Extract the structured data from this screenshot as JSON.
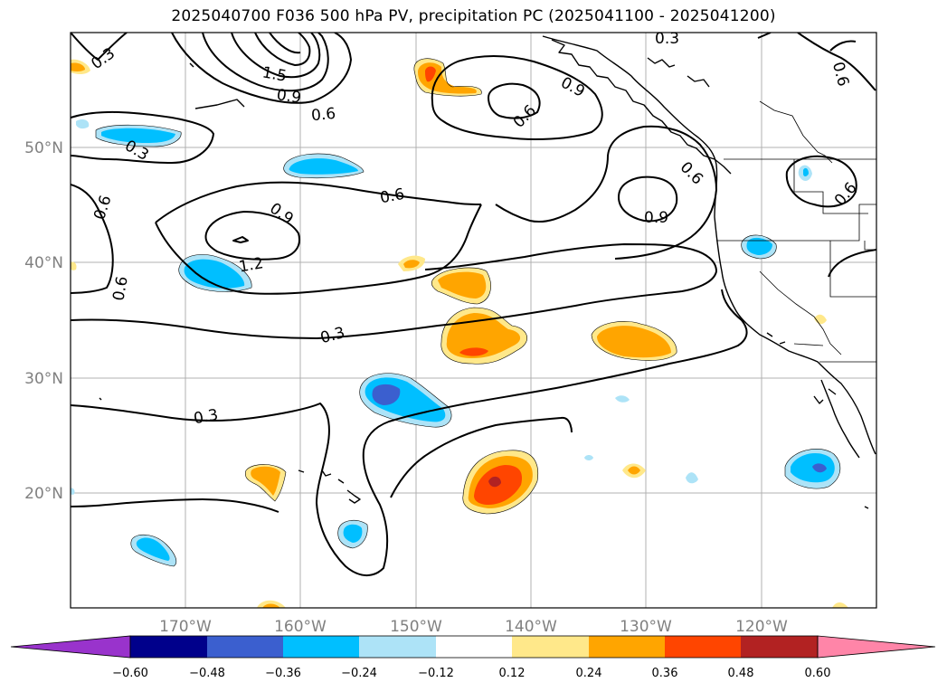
{
  "title": "2025040700 F036 500 hPa PV, precipitation PC (2025041100 - 2025041200)",
  "latitude_labels": [
    "50°N",
    "40°N",
    "30°N",
    "20°N"
  ],
  "longitude_labels": [
    "170°W",
    "160°W",
    "150°W",
    "140°W",
    "130°W",
    "120°W"
  ],
  "contour_labels": [
    "0.3",
    "1.5",
    "0.9",
    "0.6",
    "0.3",
    "0.6",
    "0.9",
    "0.6",
    "0.3",
    "0.6",
    "0.6",
    "0.9",
    "0.9",
    "0.6",
    "0.6",
    "1.2",
    "0.6",
    "0.3",
    "0.3"
  ],
  "colorbar": {
    "colors": [
      "#9933cc",
      "#00008b",
      "#3b5fcf",
      "#00bfff",
      "#ade3f7",
      "#ffffff",
      "#ffe88a",
      "#ffa500",
      "#ff4500",
      "#b22222",
      "#ff85a8"
    ],
    "tick_labels": [
      "−0.60",
      "−0.48",
      "−0.36",
      "−0.24",
      "−0.12",
      "0.12",
      "0.24",
      "0.36",
      "0.48",
      "0.60"
    ]
  },
  "colors": {
    "coast": "#000000",
    "grid": "#b0b0b0",
    "label_gray": "#808080"
  }
}
